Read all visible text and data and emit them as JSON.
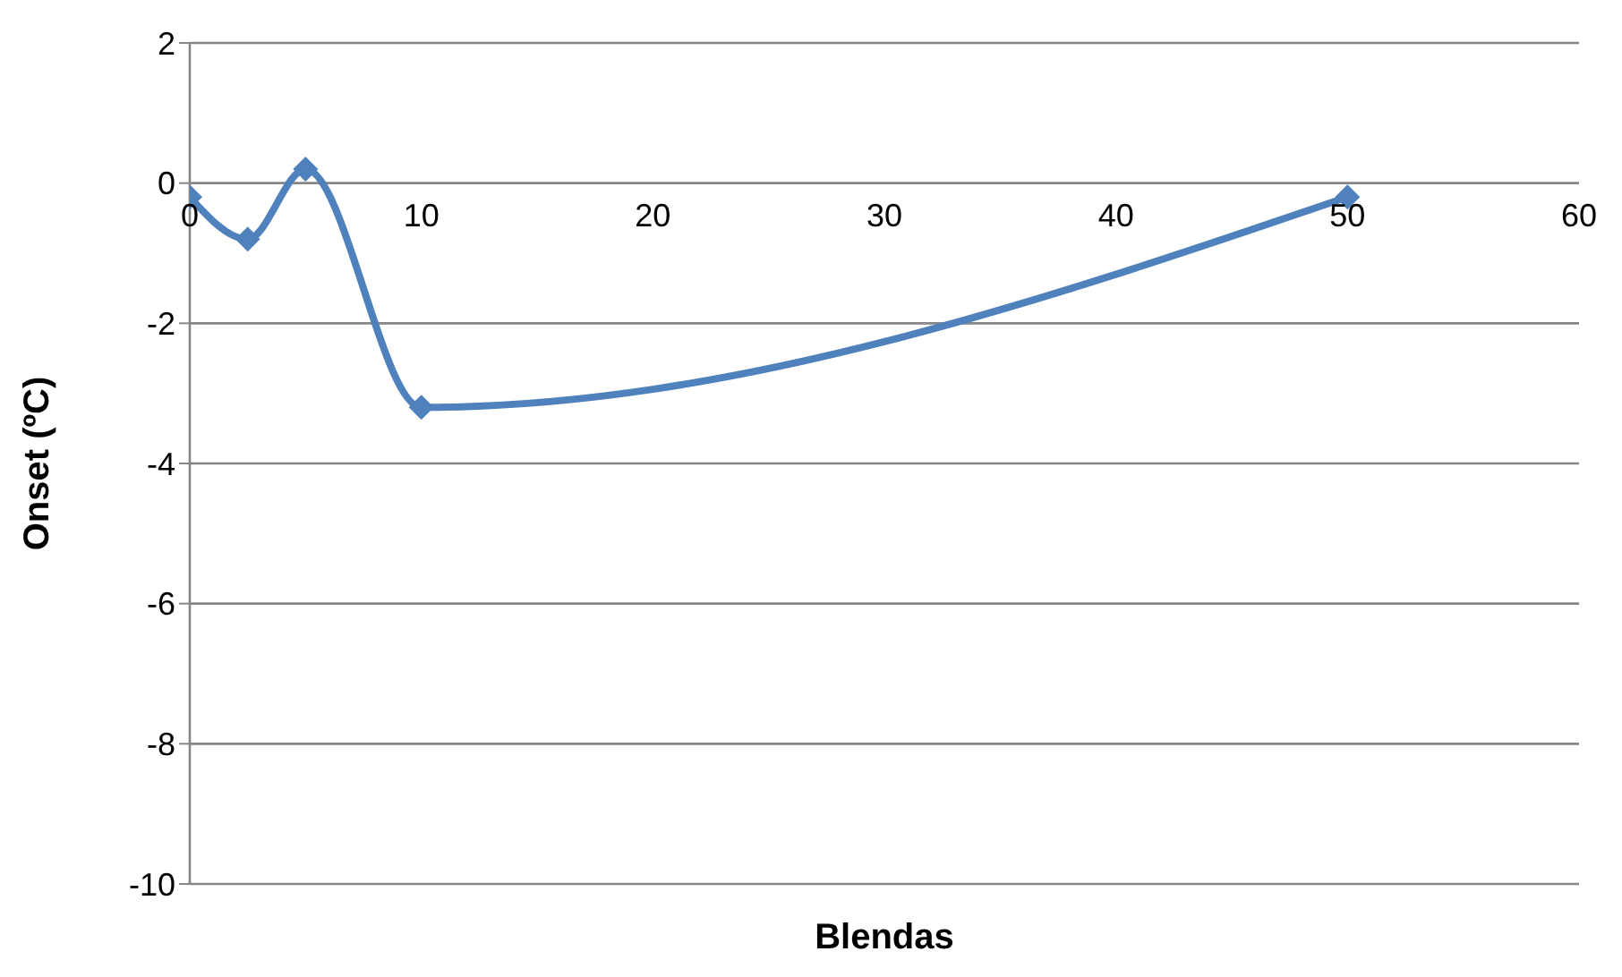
{
  "chart_data": {
    "type": "line",
    "xlabel": "Blendas",
    "ylabel": "Onset (ºC)",
    "x": [
      0,
      2.5,
      5,
      10,
      50
    ],
    "series": [
      {
        "color": "#4f81bd",
        "values": [
          -0.2,
          -0.8,
          0.2,
          -3.2,
          -0.2
        ]
      }
    ],
    "xlim": [
      0,
      60
    ],
    "xticks": [
      0,
      10,
      20,
      30,
      40,
      50,
      60
    ],
    "ylim": [
      -10,
      2
    ],
    "yticks": [
      -10,
      -8,
      -6,
      -4,
      -2,
      0,
      2
    ],
    "grid": "y",
    "legend": false,
    "marker": "diamond",
    "line_style": "solid"
  }
}
